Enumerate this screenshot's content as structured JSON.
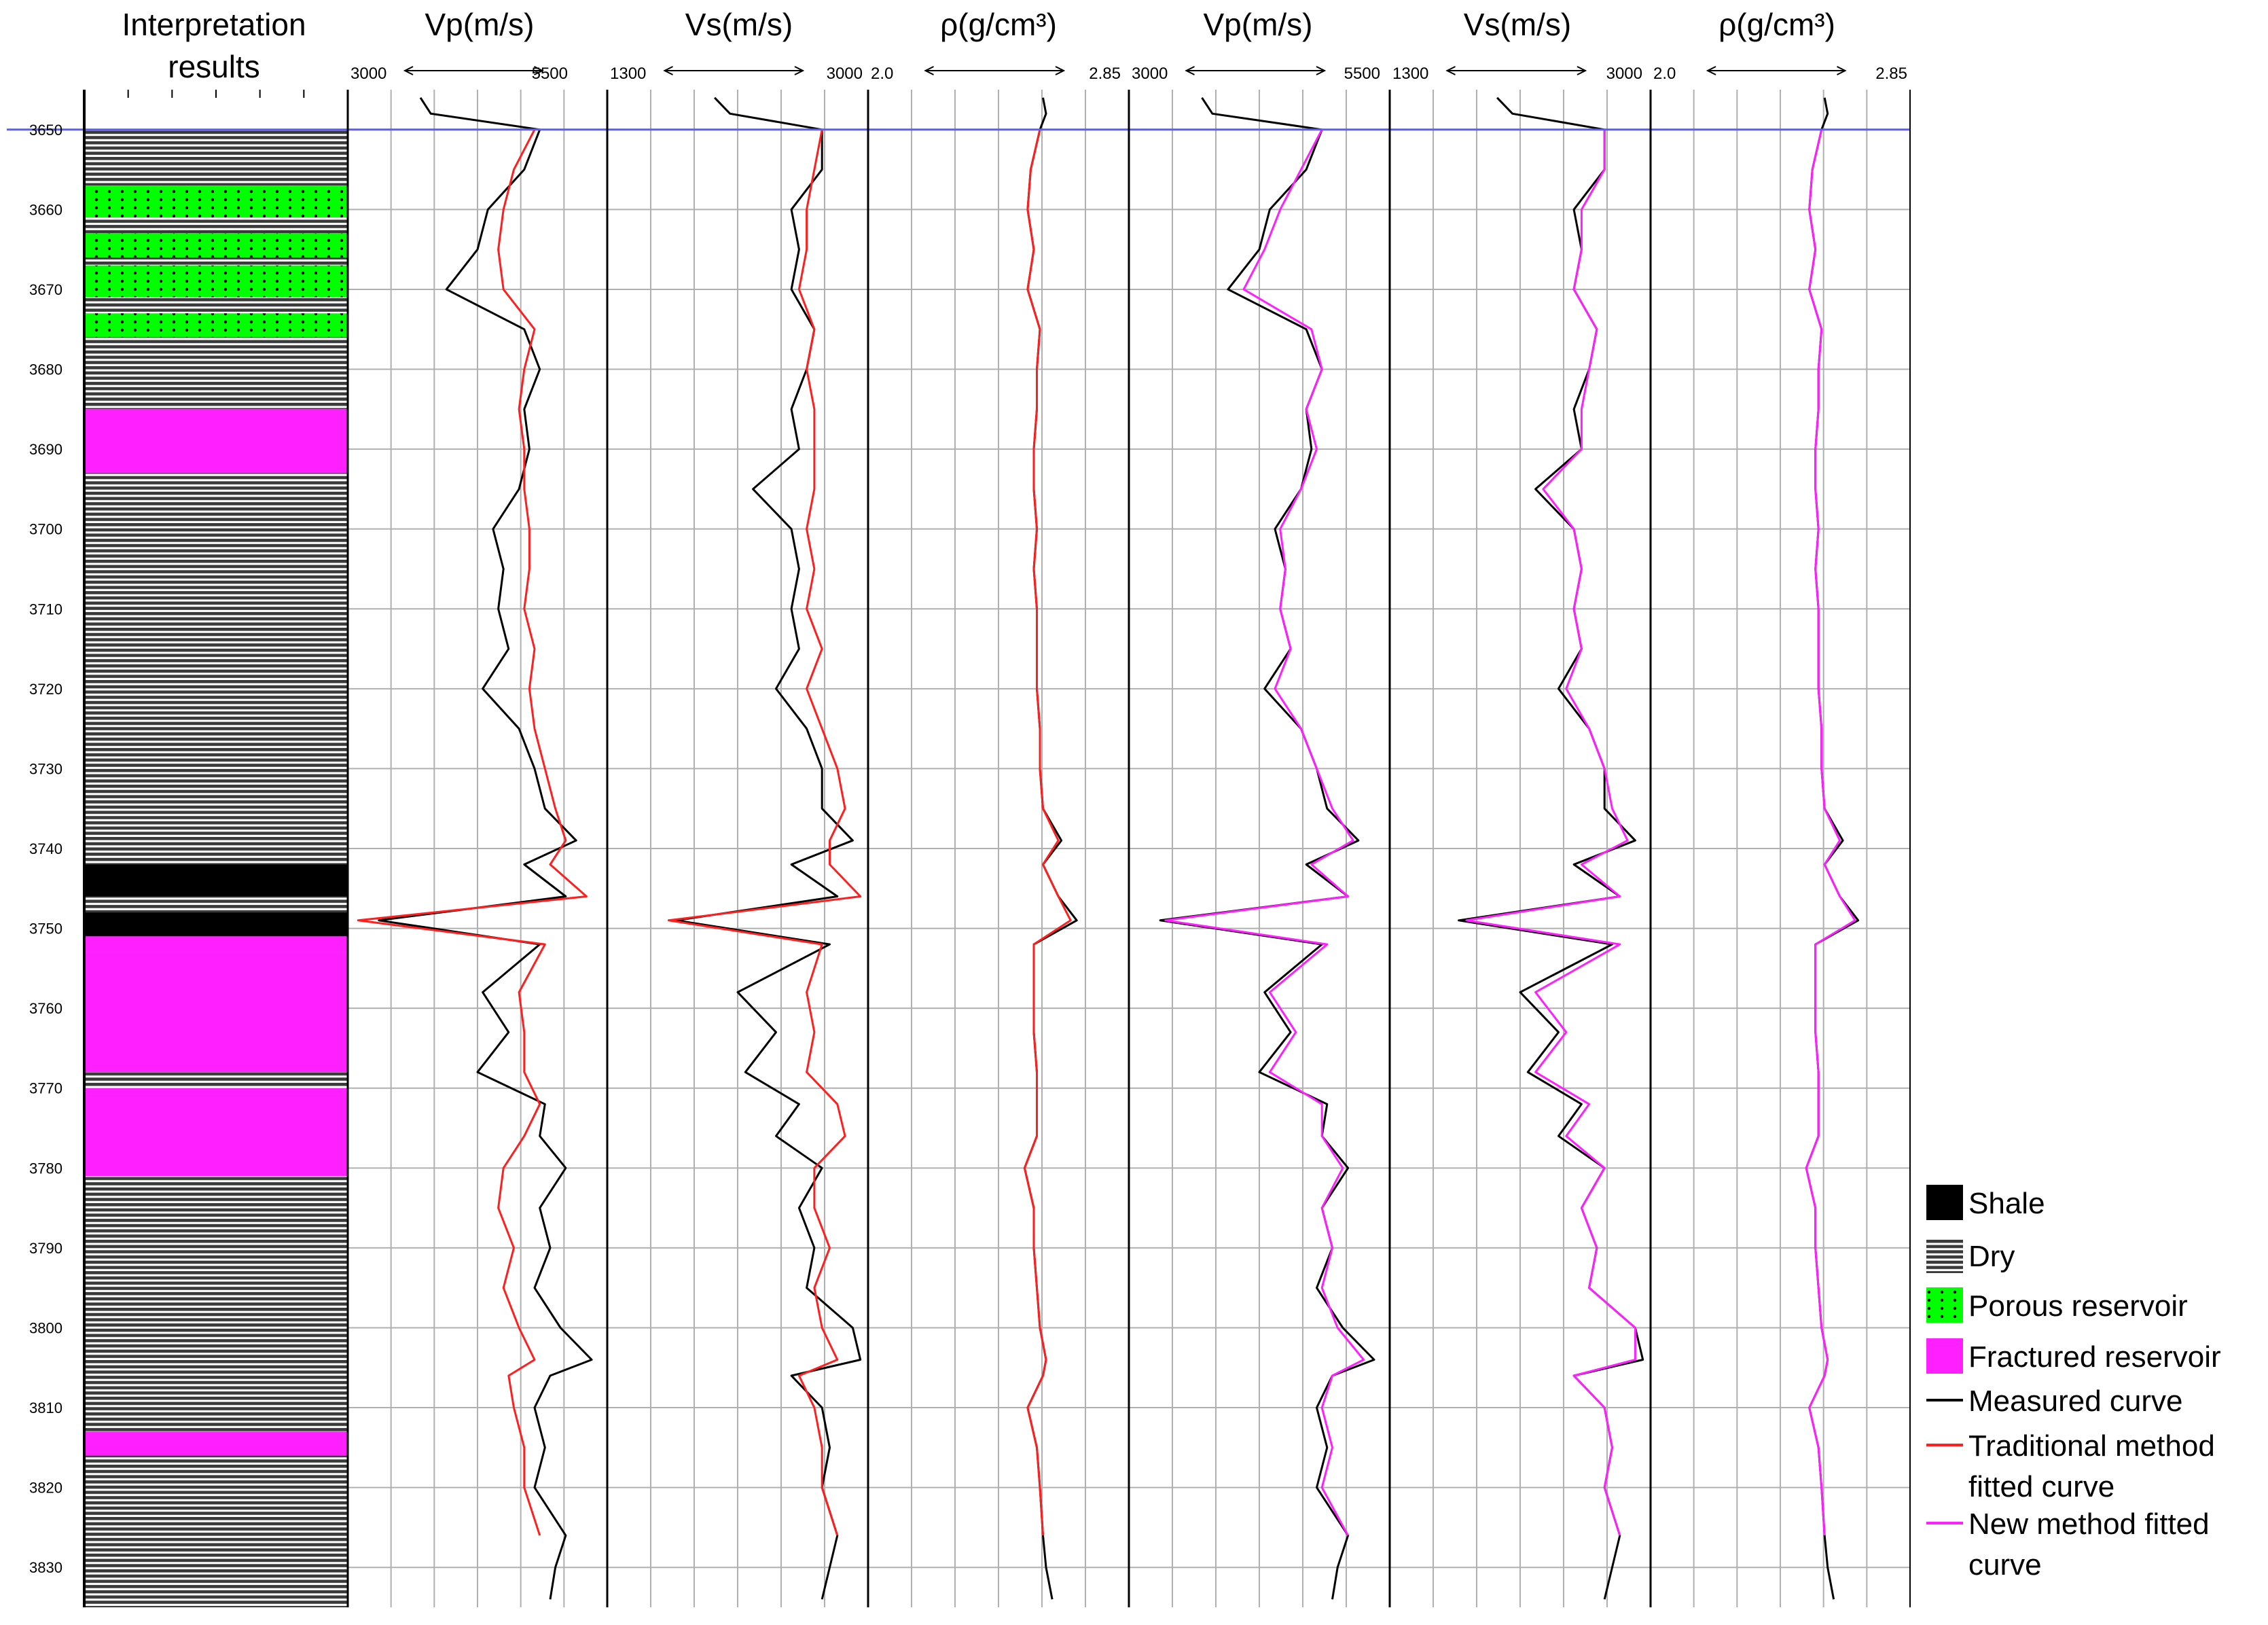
{
  "chart_data": {
    "type": "line",
    "depth_axis": {
      "min": 3645,
      "max": 3835,
      "ticks": [
        3650,
        3660,
        3670,
        3680,
        3690,
        3700,
        3710,
        3720,
        3730,
        3740,
        3750,
        3760,
        3770,
        3780,
        3790,
        3800,
        3810,
        3820,
        3830
      ],
      "reversed": true
    },
    "reference_depth": 3650,
    "lithology_track": {
      "title_line1": "Interpretation",
      "title_line2": "results",
      "intervals": [
        {
          "top": 3650,
          "bottom": 3657,
          "type": "dry"
        },
        {
          "top": 3657,
          "bottom": 3661,
          "type": "porous"
        },
        {
          "top": 3661,
          "bottom": 3663,
          "type": "dry"
        },
        {
          "top": 3663,
          "bottom": 3666,
          "type": "porous"
        },
        {
          "top": 3666,
          "bottom": 3667,
          "type": "dry"
        },
        {
          "top": 3667,
          "bottom": 3671,
          "type": "porous"
        },
        {
          "top": 3671,
          "bottom": 3673,
          "type": "dry"
        },
        {
          "top": 3673,
          "bottom": 3676,
          "type": "porous"
        },
        {
          "top": 3676,
          "bottom": 3685,
          "type": "dry"
        },
        {
          "top": 3685,
          "bottom": 3693,
          "type": "fractured"
        },
        {
          "top": 3693,
          "bottom": 3742,
          "type": "dry"
        },
        {
          "top": 3742,
          "bottom": 3746,
          "type": "shale"
        },
        {
          "top": 3746,
          "bottom": 3748,
          "type": "dry"
        },
        {
          "top": 3748,
          "bottom": 3751,
          "type": "shale"
        },
        {
          "top": 3751,
          "bottom": 3753,
          "type": "fractured"
        },
        {
          "top": 3753,
          "bottom": 3768,
          "type": "fractured"
        },
        {
          "top": 3768,
          "bottom": 3770,
          "type": "dry"
        },
        {
          "top": 3770,
          "bottom": 3781,
          "type": "fractured"
        },
        {
          "top": 3781,
          "bottom": 3813,
          "type": "dry"
        },
        {
          "top": 3813,
          "bottom": 3816,
          "type": "fractured"
        },
        {
          "top": 3816,
          "bottom": 3835,
          "type": "dry"
        }
      ]
    },
    "tracks": [
      {
        "title": "Vp(m/s)",
        "min": 3000,
        "max": 5500,
        "min_label": "3000",
        "max_label": "5500",
        "fitted": "traditional"
      },
      {
        "title": "Vs(m/s)",
        "min": 1300,
        "max": 3000,
        "min_label": "1300",
        "max_label": "3000",
        "fitted": "traditional"
      },
      {
        "title": "ρ(g/cm³)",
        "min": 2.0,
        "max": 2.85,
        "min_label": "2.0",
        "max_label": "2.85",
        "fitted": "traditional"
      },
      {
        "title": "Vp(m/s)",
        "min": 3000,
        "max": 5500,
        "min_label": "3000",
        "max_label": "5500",
        "fitted": "new"
      },
      {
        "title": "Vs(m/s)",
        "min": 1300,
        "max": 3000,
        "min_label": "1300",
        "max_label": "3000",
        "fitted": "new"
      },
      {
        "title": "ρ(g/cm³)",
        "min": 2.0,
        "max": 2.85,
        "min_label": "2.0",
        "max_label": "2.85",
        "fitted": "new"
      }
    ],
    "series": {
      "depth": [
        3646,
        3648,
        3650,
        3655,
        3660,
        3665,
        3670,
        3675,
        3680,
        3685,
        3690,
        3695,
        3700,
        3705,
        3710,
        3715,
        3720,
        3725,
        3730,
        3735,
        3739,
        3742,
        3746,
        3749,
        3752,
        3758,
        3763,
        3768,
        3772,
        3776,
        3780,
        3785,
        3790,
        3795,
        3800,
        3804,
        3806,
        3810,
        3815,
        3820,
        3826,
        3830,
        3834
      ],
      "vp_measured": [
        3700,
        3800,
        4850,
        4700,
        4350,
        4250,
        3950,
        4700,
        4850,
        4700,
        4750,
        4650,
        4400,
        4500,
        4450,
        4550,
        4300,
        4650,
        4800,
        4900,
        5200,
        4700,
        5100,
        3300,
        4850,
        4300,
        4550,
        4250,
        4900,
        4850,
        5100,
        4850,
        4950,
        4800,
        5050,
        5350,
        4950,
        4800,
        4900,
        4800,
        5100,
        5000,
        4950
      ],
      "vp_traditional": [
        null,
        null,
        4800,
        4600,
        4500,
        4450,
        4500,
        4800,
        4700,
        4650,
        4700,
        4700,
        4750,
        4750,
        4700,
        4800,
        4750,
        4800,
        4900,
        5000,
        5100,
        4950,
        5300,
        3100,
        4900,
        4650,
        4700,
        4700,
        4850,
        4700,
        4500,
        4450,
        4600,
        4500,
        4650,
        4800,
        4550,
        4600,
        4700,
        4700,
        4850,
        null,
        null
      ],
      "vp_new": [
        null,
        null,
        4850,
        4650,
        4450,
        4300,
        4100,
        4750,
        4850,
        4700,
        4800,
        4650,
        4450,
        4500,
        4450,
        4550,
        4400,
        4650,
        4800,
        4950,
        5150,
        4750,
        5100,
        3350,
        4900,
        4350,
        4600,
        4350,
        4850,
        4850,
        5050,
        4850,
        4950,
        4850,
        5000,
        5250,
        4950,
        4850,
        4950,
        4850,
        5100,
        null,
        null
      ],
      "vs_measured": [
        2000,
        2100,
        2700,
        2700,
        2500,
        2550,
        2500,
        2650,
        2600,
        2500,
        2550,
        2250,
        2500,
        2550,
        2500,
        2550,
        2400,
        2600,
        2700,
        2700,
        2900,
        2500,
        2800,
        1750,
        2750,
        2150,
        2400,
        2200,
        2550,
        2400,
        2700,
        2550,
        2650,
        2600,
        2900,
        2950,
        2500,
        2700,
        2750,
        2700,
        2800,
        2750,
        2700
      ],
      "vs_traditional": [
        null,
        null,
        2700,
        2650,
        2600,
        2600,
        2550,
        2650,
        2600,
        2650,
        2650,
        2650,
        2600,
        2650,
        2600,
        2700,
        2600,
        2700,
        2800,
        2850,
        2750,
        2750,
        2950,
        1700,
        2700,
        2600,
        2650,
        2600,
        2800,
        2850,
        2650,
        2650,
        2750,
        2650,
        2700,
        2800,
        2550,
        2650,
        2700,
        2700,
        2800,
        null,
        null
      ],
      "vs_new": [
        null,
        null,
        2700,
        2700,
        2550,
        2550,
        2500,
        2650,
        2600,
        2550,
        2550,
        2300,
        2500,
        2550,
        2500,
        2550,
        2450,
        2600,
        2700,
        2750,
        2850,
        2550,
        2800,
        1800,
        2800,
        2250,
        2450,
        2250,
        2600,
        2450,
        2700,
        2550,
        2650,
        2600,
        2900,
        2900,
        2500,
        2700,
        2750,
        2700,
        2800,
        null,
        null
      ],
      "rho_measured": [
        2.57,
        2.58,
        2.56,
        2.53,
        2.52,
        2.54,
        2.52,
        2.56,
        2.55,
        2.55,
        2.54,
        2.54,
        2.55,
        2.54,
        2.55,
        2.55,
        2.55,
        2.56,
        2.56,
        2.57,
        2.63,
        2.57,
        2.62,
        2.68,
        2.54,
        2.54,
        2.54,
        2.55,
        2.55,
        2.55,
        2.51,
        2.54,
        2.54,
        2.55,
        2.56,
        2.58,
        2.57,
        2.52,
        2.55,
        2.56,
        2.57,
        2.58,
        2.6
      ],
      "rho_traditional": [
        null,
        null,
        2.56,
        2.53,
        2.52,
        2.54,
        2.52,
        2.56,
        2.55,
        2.55,
        2.54,
        2.54,
        2.55,
        2.54,
        2.55,
        2.55,
        2.55,
        2.56,
        2.56,
        2.57,
        2.62,
        2.57,
        2.62,
        2.66,
        2.54,
        2.54,
        2.54,
        2.55,
        2.55,
        2.55,
        2.51,
        2.54,
        2.54,
        2.55,
        2.56,
        2.58,
        2.57,
        2.52,
        2.55,
        2.56,
        2.57,
        null,
        null
      ],
      "rho_new": [
        null,
        null,
        2.56,
        2.53,
        2.52,
        2.54,
        2.52,
        2.56,
        2.55,
        2.55,
        2.54,
        2.54,
        2.55,
        2.54,
        2.55,
        2.55,
        2.55,
        2.56,
        2.56,
        2.57,
        2.62,
        2.57,
        2.62,
        2.67,
        2.54,
        2.54,
        2.54,
        2.55,
        2.55,
        2.55,
        2.51,
        2.54,
        2.54,
        2.55,
        2.56,
        2.58,
        2.57,
        2.52,
        2.55,
        2.56,
        2.57,
        null,
        null
      ]
    },
    "legend": {
      "placement": "right",
      "items": [
        {
          "key": "shale",
          "label": "Shale"
        },
        {
          "key": "dry",
          "label": "Dry"
        },
        {
          "key": "porous",
          "label": "Porous reservoir"
        },
        {
          "key": "fractured",
          "label": "Fractured reservoir"
        },
        {
          "key": "measured",
          "label": "Measured curve"
        },
        {
          "key": "traditional",
          "label": "Traditional method",
          "label2": "fitted curve"
        },
        {
          "key": "new",
          "label": "New method fitted",
          "label2": "curve"
        }
      ]
    },
    "colors": {
      "measured": "#000000",
      "traditional": "#ff1f1f",
      "new": "#ff1fff",
      "shale": "#000000",
      "porous": "#00ff00",
      "fractured": "#ff1fff",
      "reference_line": "#5b5bff",
      "grid": "#b0b0b0"
    }
  }
}
